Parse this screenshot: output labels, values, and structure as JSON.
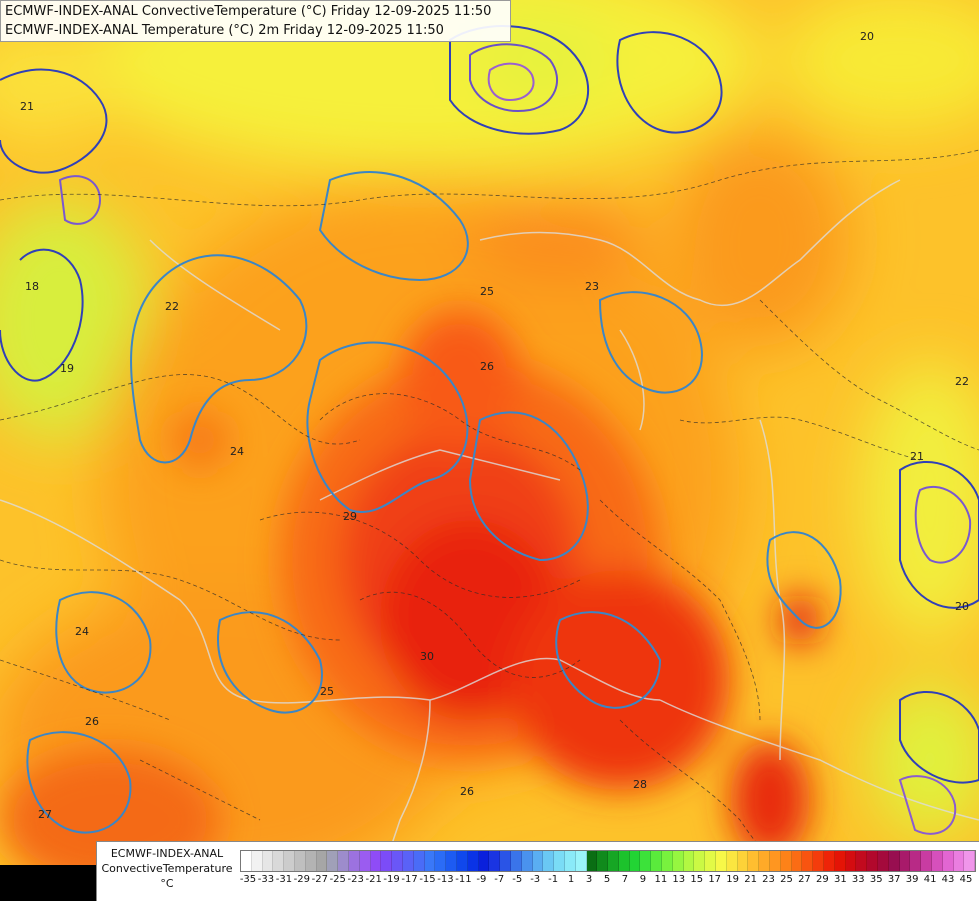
{
  "title": {
    "line1": "ECMWF-INDEX-ANAL ConvectiveTemperature (°C) Friday 12-09-2025 11:50",
    "line2": "ECMWF-INDEX-ANAL Temperature (°C) 2m Friday 12-09-2025 11:50"
  },
  "legend": {
    "line1": "ECMWF-INDEX-ANAL",
    "line2": "ConvectiveTemperature",
    "unit": "°C",
    "tick_labels": [
      "-35",
      "-33",
      "-31",
      "-29",
      "-27",
      "-25",
      "-23",
      "-21",
      "-19",
      "-17",
      "-15",
      "-13",
      "-11",
      "-9",
      "-7",
      "-5",
      "-3",
      "-1",
      "1",
      "3",
      "5",
      "7",
      "9",
      "11",
      "13",
      "15",
      "17",
      "19",
      "21",
      "23",
      "25",
      "27",
      "29",
      "31",
      "33",
      "35",
      "37",
      "39",
      "41",
      "43",
      "45"
    ],
    "colors": [
      "#ffffff",
      "#f2f2f2",
      "#e6e6e6",
      "#d9d9d9",
      "#cccccc",
      "#bfbfbf",
      "#b3b3b3",
      "#a6a6a6",
      "#a0a0b8",
      "#9d8ccc",
      "#9c72e0",
      "#9b5cf0",
      "#8f4cf6",
      "#7c4cf7",
      "#6a57f7",
      "#5a62f7",
      "#4a6cf7",
      "#3a78f8",
      "#2b6cf6",
      "#1d5bf2",
      "#1048ec",
      "#0a33e6",
      "#0a20dc",
      "#1a34e2",
      "#2a54e6",
      "#3a74ea",
      "#4a92ee",
      "#5aaef2",
      "#6ac8f4",
      "#7adcf6",
      "#8aeaf8",
      "#9af4fa",
      "#0a6e14",
      "#108a1c",
      "#16a624",
      "#1cc22c",
      "#22d434",
      "#3ce23a",
      "#5aeb3c",
      "#78f23e",
      "#96f640",
      "#b2f842",
      "#cbf944",
      "#e2fa46",
      "#f7f848",
      "#fbe640",
      "#fdd238",
      "#ffbe30",
      "#ffaa28",
      "#ff9620",
      "#fd8218",
      "#fb6c14",
      "#f85410",
      "#f43c0c",
      "#ee2408",
      "#e41406",
      "#d40c10",
      "#c20a1e",
      "#b2082c",
      "#a40a3c",
      "#980e50",
      "#a81a6a",
      "#b82a86",
      "#c83ca2",
      "#d650bc",
      "#e266d2",
      "#ea7ee0",
      "#f096ea"
    ]
  },
  "map": {
    "contour_labels": [
      "20",
      "19",
      "21",
      "22",
      "24",
      "25",
      "23",
      "26",
      "29",
      "30",
      "27",
      "28",
      "18",
      "25",
      "26",
      "22",
      "21",
      "20",
      "24",
      "26"
    ]
  }
}
